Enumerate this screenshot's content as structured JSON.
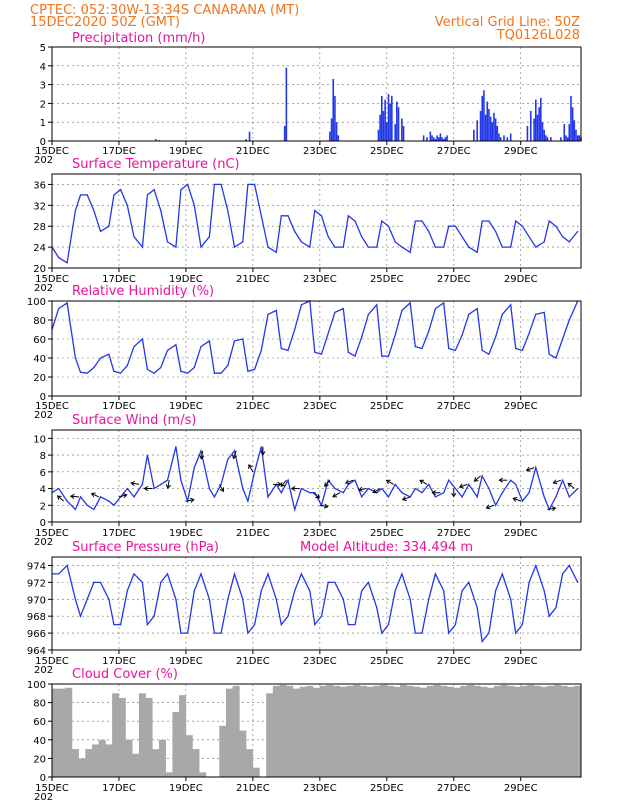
{
  "header": {
    "line1": "CPTEC:  052:30W-13:34S  CANARANA (MT)",
    "line2": "15DEC2020 50Z (GMT)",
    "grid_note": "Vertical Grid Line: 50Z",
    "code": "TQ0126L028"
  },
  "model_altitude": "Model Altitude: 334.494 m",
  "x_ticks": [
    "15DEC",
    "17DEC",
    "19DEC",
    "21DEC",
    "23DEC",
    "25DEC",
    "27DEC",
    "29DEC"
  ],
  "x_sublabel": "202",
  "colors": {
    "header": "#f0741c",
    "title": "#e8149c",
    "series": "#2238e8",
    "cloud": "#a8a8a8"
  },
  "chart_data": [
    {
      "type": "bar",
      "title": "Precipitation (mm/h)",
      "ylim": [
        0,
        5
      ],
      "yticks": [
        "0",
        "1",
        "2",
        "3",
        "4",
        "5"
      ],
      "x_unit": "days since 15DEC 00Z",
      "x": [
        3.1,
        3.2,
        5.8,
        5.9,
        6.95,
        7.0,
        8.3,
        8.35,
        8.4,
        8.45,
        8.5,
        8.55,
        9.75,
        9.8,
        9.85,
        9.9,
        9.95,
        10.0,
        10.05,
        10.1,
        10.15,
        10.25,
        10.3,
        10.35,
        10.45,
        10.5,
        11.1,
        11.2,
        11.3,
        11.35,
        11.4,
        11.45,
        11.5,
        11.55,
        11.6,
        11.65,
        11.7,
        11.75,
        11.8,
        12.6,
        12.7,
        12.8,
        12.85,
        12.9,
        12.95,
        13.0,
        13.05,
        13.1,
        13.15,
        13.2,
        13.25,
        13.3,
        13.35,
        13.4,
        13.5,
        13.6,
        13.7,
        14.2,
        14.3,
        14.4,
        14.45,
        14.5,
        14.55,
        14.6,
        14.65,
        14.7,
        14.75,
        14.8,
        14.9,
        15.2,
        15.3,
        15.35,
        15.4,
        15.45,
        15.5,
        15.55,
        15.6,
        15.65,
        15.7,
        15.75,
        15.8
      ],
      "values": [
        0.1,
        0.05,
        0.1,
        0.5,
        0.8,
        3.9,
        0.5,
        1.2,
        3.3,
        2.4,
        1.0,
        0.3,
        0.6,
        1.4,
        2.4,
        1.6,
        2.2,
        1.0,
        2.5,
        2.0,
        2.4,
        0.9,
        2.1,
        1.8,
        1.2,
        0.8,
        0.3,
        0.2,
        0.5,
        0.3,
        0.2,
        0.1,
        0.3,
        0.2,
        0.4,
        0.2,
        0.1,
        0.2,
        0.3,
        0.6,
        1.1,
        1.6,
        2.4,
        2.7,
        1.4,
        2.1,
        1.7,
        1.3,
        1.0,
        1.5,
        1.2,
        0.8,
        0.4,
        0.2,
        0.3,
        0.2,
        0.4,
        0.8,
        1.6,
        1.2,
        2.2,
        1.4,
        1.8,
        2.3,
        1.0,
        0.6,
        0.3,
        0.2,
        0.2,
        0.2,
        0.9,
        0.3,
        0.2,
        0.9,
        2.4,
        1.8,
        1.1,
        0.6,
        0.3,
        0.3,
        0.2
      ]
    },
    {
      "type": "line",
      "title": "Surface Temperature (nC)",
      "ylim": [
        20,
        38
      ],
      "yticks": [
        "20",
        "24",
        "28",
        "32",
        "36"
      ],
      "x_unit": "days since 15DEC 00Z",
      "x": [
        0,
        0.2,
        0.45,
        0.7,
        0.85,
        1.05,
        1.25,
        1.45,
        1.7,
        1.85,
        2.05,
        2.25,
        2.45,
        2.7,
        2.85,
        3.05,
        3.25,
        3.45,
        3.7,
        3.85,
        4.05,
        4.25,
        4.45,
        4.7,
        4.85,
        5.05,
        5.25,
        5.45,
        5.7,
        5.85,
        6.05,
        6.25,
        6.45,
        6.7,
        6.85,
        7.05,
        7.25,
        7.45,
        7.7,
        7.85,
        8.05,
        8.25,
        8.45,
        8.7,
        8.85,
        9.05,
        9.25,
        9.45,
        9.7,
        9.85,
        10.05,
        10.25,
        10.45,
        10.7,
        10.85,
        11.05,
        11.25,
        11.45,
        11.7,
        11.85,
        12.05,
        12.25,
        12.45,
        12.7,
        12.85,
        13.05,
        13.25,
        13.45,
        13.7,
        13.85,
        14.05,
        14.25,
        14.45,
        14.7,
        14.85,
        15.05,
        15.25,
        15.45,
        15.7
      ],
      "values": [
        24,
        22,
        21,
        31,
        34,
        34,
        31,
        27,
        28,
        34,
        35,
        32,
        26,
        24,
        34,
        35,
        31,
        25,
        24,
        35,
        36,
        32,
        24,
        26,
        36,
        36,
        31,
        24,
        25,
        36,
        36,
        30,
        24,
        23,
        30,
        30,
        27,
        25,
        24,
        31,
        30,
        26,
        24,
        24,
        30,
        29,
        26,
        24,
        24,
        29,
        28,
        25,
        24,
        23,
        29,
        29,
        27,
        24,
        24,
        28,
        28,
        26,
        24,
        23,
        29,
        29,
        27,
        24,
        24,
        29,
        28,
        26,
        24,
        25,
        29,
        28,
        26,
        25,
        27
      ]
    },
    {
      "type": "line",
      "title": "Relative Humidity (%)",
      "ylim": [
        0,
        100
      ],
      "yticks": [
        "0",
        "20",
        "40",
        "60",
        "80",
        "100"
      ],
      "x_unit": "days since 15DEC 00Z",
      "x": [
        0,
        0.2,
        0.45,
        0.7,
        0.85,
        1.05,
        1.25,
        1.45,
        1.7,
        1.85,
        2.05,
        2.25,
        2.45,
        2.7,
        2.85,
        3.05,
        3.25,
        3.45,
        3.7,
        3.85,
        4.05,
        4.25,
        4.45,
        4.7,
        4.85,
        5.05,
        5.25,
        5.45,
        5.7,
        5.85,
        6.05,
        6.25,
        6.45,
        6.7,
        6.85,
        7.05,
        7.25,
        7.45,
        7.7,
        7.85,
        8.05,
        8.25,
        8.45,
        8.7,
        8.85,
        9.05,
        9.25,
        9.45,
        9.7,
        9.85,
        10.05,
        10.25,
        10.45,
        10.7,
        10.85,
        11.05,
        11.25,
        11.45,
        11.7,
        11.85,
        12.05,
        12.25,
        12.45,
        12.7,
        12.85,
        13.05,
        13.25,
        13.45,
        13.7,
        13.85,
        14.05,
        14.25,
        14.45,
        14.7,
        14.85,
        15.05,
        15.25,
        15.45,
        15.7
      ],
      "values": [
        70,
        92,
        98,
        40,
        25,
        24,
        30,
        40,
        44,
        26,
        24,
        32,
        52,
        60,
        28,
        24,
        30,
        48,
        54,
        26,
        24,
        30,
        52,
        58,
        24,
        24,
        32,
        58,
        60,
        26,
        28,
        48,
        86,
        90,
        50,
        48,
        70,
        96,
        100,
        46,
        44,
        66,
        88,
        92,
        46,
        42,
        62,
        86,
        96,
        42,
        42,
        64,
        90,
        98,
        52,
        50,
        68,
        92,
        98,
        50,
        48,
        64,
        86,
        92,
        48,
        44,
        62,
        86,
        96,
        50,
        48,
        66,
        86,
        88,
        44,
        40,
        60,
        80,
        100
      ]
    },
    {
      "type": "line",
      "title": "Surface Wind (m/s)",
      "ylim": [
        0,
        11
      ],
      "yticks": [
        "0",
        "2",
        "4",
        "6",
        "8",
        "10"
      ],
      "x_unit": "days since 15DEC 00Z",
      "x": [
        0,
        0.2,
        0.45,
        0.7,
        0.85,
        1.05,
        1.25,
        1.45,
        1.7,
        1.85,
        2.05,
        2.25,
        2.45,
        2.7,
        2.85,
        3.05,
        3.25,
        3.45,
        3.7,
        3.85,
        4.05,
        4.25,
        4.45,
        4.7,
        4.85,
        5.05,
        5.25,
        5.45,
        5.7,
        5.85,
        6.05,
        6.25,
        6.45,
        6.7,
        6.85,
        7.05,
        7.25,
        7.45,
        7.7,
        7.85,
        8.05,
        8.25,
        8.45,
        8.7,
        8.85,
        9.05,
        9.25,
        9.45,
        9.7,
        9.85,
        10.05,
        10.25,
        10.45,
        10.7,
        10.85,
        11.05,
        11.25,
        11.45,
        11.7,
        11.85,
        12.05,
        12.25,
        12.45,
        12.7,
        12.85,
        13.05,
        13.25,
        13.45,
        13.7,
        13.85,
        14.05,
        14.25,
        14.45,
        14.7,
        14.85,
        15.05,
        15.25,
        15.45,
        15.7
      ],
      "values": [
        3.5,
        4.0,
        2.5,
        1.5,
        3.0,
        2.0,
        1.5,
        3.0,
        2.5,
        2.0,
        3.0,
        4.0,
        3.0,
        4.5,
        8.0,
        4.0,
        4.5,
        5.0,
        9.0,
        5.0,
        2.5,
        6.5,
        8.5,
        4.0,
        3.0,
        4.5,
        7.5,
        8.5,
        4.0,
        2.5,
        6.0,
        9.0,
        3.0,
        4.5,
        3.5,
        5.0,
        1.5,
        4.0,
        3.5,
        3.5,
        2.0,
        5.0,
        4.0,
        3.5,
        4.5,
        5.0,
        3.0,
        4.0,
        3.5,
        4.0,
        3.0,
        4.5,
        3.5,
        3.0,
        4.0,
        3.5,
        4.5,
        3.0,
        3.5,
        5.0,
        4.0,
        3.0,
        4.5,
        3.0,
        5.5,
        4.0,
        2.0,
        3.5,
        5.0,
        4.5,
        2.5,
        3.5,
        6.5,
        3.0,
        1.5,
        3.0,
        5.0,
        3.0,
        4.0
      ],
      "arrow_x": [
        0.35,
        0.8,
        1.4,
        2.0,
        2.6,
        3.0,
        3.5,
        4.0,
        4.5,
        5.0,
        5.5,
        6.0,
        6.3,
        6.6,
        7.0,
        7.4,
        7.8,
        8.0,
        8.3,
        8.6,
        9.0,
        9.4,
        9.8,
        10.2,
        10.7,
        11.2,
        11.6,
        12.0,
        12.4,
        12.8,
        13.2,
        13.6,
        14.0,
        14.4,
        14.8,
        15.2,
        15.6
      ],
      "arrow_dir": [
        140,
        175,
        155,
        15,
        170,
        180,
        260,
        10,
        260,
        300,
        250,
        120,
        270,
        0,
        230,
        180,
        320,
        350,
        230,
        210,
        200,
        190,
        210,
        150,
        200,
        150,
        180,
        270,
        200,
        220,
        200,
        180,
        160,
        200,
        10,
        200,
        140
      ]
    },
    {
      "type": "line",
      "title": "Surface Pressure (hPa)",
      "ylim": [
        964,
        975
      ],
      "yticks": [
        "964",
        "966",
        "968",
        "970",
        "972",
        "974"
      ],
      "x_unit": "days since 15DEC 00Z",
      "x": [
        0,
        0.2,
        0.45,
        0.7,
        0.85,
        1.05,
        1.25,
        1.45,
        1.7,
        1.85,
        2.05,
        2.25,
        2.45,
        2.7,
        2.85,
        3.05,
        3.25,
        3.45,
        3.7,
        3.85,
        4.05,
        4.25,
        4.45,
        4.7,
        4.85,
        5.05,
        5.25,
        5.45,
        5.7,
        5.85,
        6.05,
        6.25,
        6.45,
        6.7,
        6.85,
        7.05,
        7.25,
        7.45,
        7.7,
        7.85,
        8.05,
        8.25,
        8.45,
        8.7,
        8.85,
        9.05,
        9.25,
        9.45,
        9.7,
        9.85,
        10.05,
        10.25,
        10.45,
        10.7,
        10.85,
        11.05,
        11.25,
        11.45,
        11.7,
        11.85,
        12.05,
        12.25,
        12.45,
        12.7,
        12.85,
        13.05,
        13.25,
        13.45,
        13.7,
        13.85,
        14.05,
        14.25,
        14.45,
        14.7,
        14.85,
        15.05,
        15.25,
        15.45,
        15.7
      ],
      "values": [
        973,
        973,
        974,
        970,
        968,
        970,
        972,
        972,
        970,
        967,
        967,
        971,
        973,
        972,
        967,
        968,
        972,
        973,
        970,
        966,
        966,
        971,
        973,
        970,
        966,
        966,
        970,
        973,
        970,
        966,
        967,
        971,
        973,
        970,
        967,
        968,
        971,
        973,
        971,
        967,
        968,
        972,
        972,
        970,
        967,
        967,
        971,
        972,
        969,
        966,
        967,
        971,
        973,
        970,
        966,
        966,
        970,
        973,
        971,
        966,
        967,
        971,
        972,
        969,
        965,
        966,
        971,
        973,
        970,
        966,
        967,
        972,
        974,
        971,
        968,
        969,
        973,
        974,
        972
      ]
    },
    {
      "type": "bar",
      "title": "Cloud Cover (%)",
      "ylim": [
        0,
        100
      ],
      "yticks": [
        "0",
        "20",
        "40",
        "60",
        "80",
        "100"
      ],
      "x_unit": "days since 15DEC 00Z",
      "x": [
        0.1,
        0.3,
        0.5,
        0.7,
        0.9,
        1.1,
        1.3,
        1.5,
        1.7,
        1.9,
        2.1,
        2.3,
        2.5,
        2.7,
        2.9,
        3.1,
        3.3,
        3.5,
        3.7,
        3.9,
        4.1,
        4.3,
        4.5,
        4.7,
        4.9,
        5.1,
        5.3,
        5.5,
        5.7,
        5.9,
        6.1,
        6.3,
        6.5,
        6.7,
        6.9,
        7.1,
        7.3,
        7.5,
        7.7,
        7.9,
        8.1,
        8.3,
        8.5,
        8.7,
        8.9,
        9.1,
        9.3,
        9.5,
        9.7,
        9.9,
        10.1,
        10.3,
        10.5,
        10.7,
        10.9,
        11.1,
        11.3,
        11.5,
        11.7,
        11.9,
        12.1,
        12.3,
        12.5,
        12.7,
        12.9,
        13.1,
        13.3,
        13.5,
        13.7,
        13.9,
        14.1,
        14.3,
        14.5,
        14.7,
        14.9,
        15.1,
        15.3,
        15.5,
        15.7
      ],
      "values": [
        95,
        95,
        96,
        30,
        20,
        30,
        35,
        40,
        35,
        90,
        85,
        40,
        25,
        90,
        85,
        30,
        40,
        5,
        70,
        88,
        45,
        30,
        5,
        0,
        0,
        55,
        95,
        98,
        50,
        30,
        10,
        0,
        90,
        98,
        99,
        98,
        95,
        97,
        98,
        96,
        98,
        99,
        98,
        97,
        98,
        99,
        98,
        97,
        98,
        99,
        98,
        97,
        99,
        98,
        97,
        96,
        98,
        99,
        98,
        97,
        96,
        98,
        99,
        98,
        97,
        96,
        98,
        99,
        98,
        97,
        98,
        99,
        98,
        97,
        98,
        99,
        98,
        97,
        98
      ]
    }
  ]
}
